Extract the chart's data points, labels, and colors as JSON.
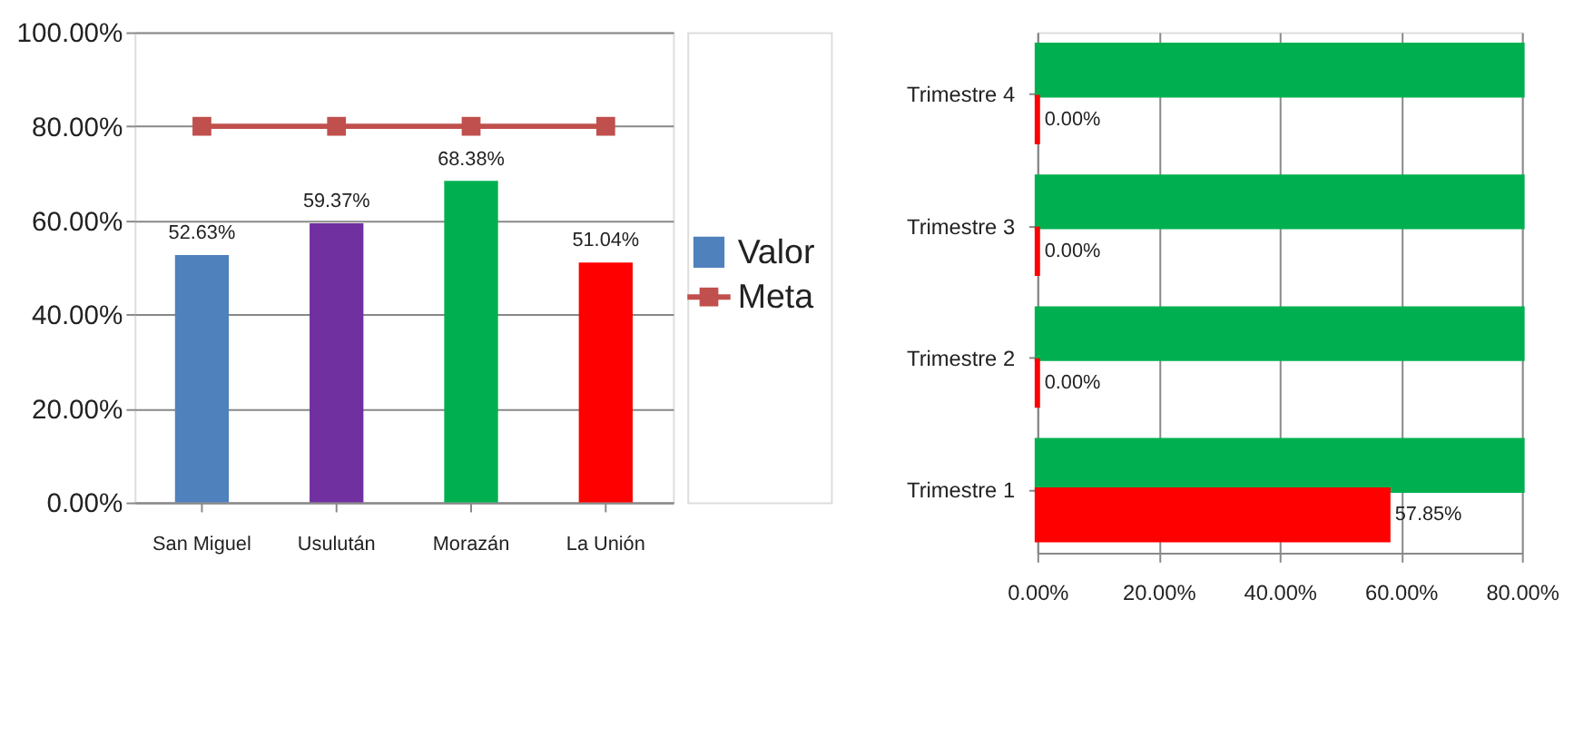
{
  "chart_data": [
    {
      "type": "bar",
      "categories": [
        "San Miguel",
        "Usulután",
        "Morazán",
        "La Unión"
      ],
      "series": [
        {
          "name": "Valor",
          "type": "bar",
          "color": "#4f81bd",
          "colors": [
            "#4f81bd",
            "#7030a0",
            "#00b050",
            "#ff0000"
          ],
          "values": [
            52.63,
            59.37,
            68.38,
            51.04
          ],
          "value_labels": [
            "52.63%",
            "59.37%",
            "68.38%",
            "51.04%"
          ]
        },
        {
          "name": "Meta",
          "type": "line",
          "color": "#c0504d",
          "marker": "square",
          "values": [
            80,
            80,
            80,
            80
          ]
        }
      ],
      "ylim": [
        0,
        100
      ],
      "yticks": [
        {
          "value": 0,
          "label": "0.00%"
        },
        {
          "value": 20,
          "label": "20.00%"
        },
        {
          "value": 40,
          "label": "40.00%"
        },
        {
          "value": 60,
          "label": "60.00%"
        },
        {
          "value": 80,
          "label": "80.00%"
        },
        {
          "value": 100,
          "label": "100.00%"
        }
      ],
      "grid": "y",
      "legend": "right"
    },
    {
      "type": "bar",
      "orientation": "horizontal",
      "categories": [
        "Trimestre 4",
        "Trimestre 3",
        "Trimestre 2",
        "Trimestre 1"
      ],
      "series": [
        {
          "color": "#00b050",
          "values": [
            80,
            80,
            80,
            80
          ]
        },
        {
          "color": "#ff0000",
          "values": [
            0,
            0,
            0,
            57.85
          ],
          "value_labels": [
            "0.00%",
            "0.00%",
            "0.00%",
            "57.85%"
          ]
        }
      ],
      "xlim": [
        0,
        80
      ],
      "xticks": [
        {
          "value": 0,
          "label": "0.00%"
        },
        {
          "value": 20,
          "label": "20.00%"
        },
        {
          "value": 40,
          "label": "40.00%"
        },
        {
          "value": 60,
          "label": "60.00%"
        },
        {
          "value": 80,
          "label": "80.00%"
        }
      ],
      "grid": "x"
    }
  ]
}
